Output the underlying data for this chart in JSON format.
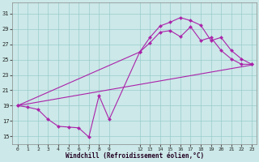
{
  "bg_color": "#cce8e8",
  "grid_color": "#99cccc",
  "line_color": "#aa22aa",
  "xlabel": "Windchill (Refroidissement éolien,°C)",
  "xlim": [
    -0.5,
    23.5
  ],
  "ylim": [
    14.0,
    32.5
  ],
  "yticks": [
    15,
    17,
    19,
    21,
    23,
    25,
    27,
    29,
    31
  ],
  "xticks": [
    0,
    1,
    2,
    3,
    4,
    5,
    6,
    7,
    8,
    9,
    12,
    13,
    14,
    15,
    16,
    17,
    18,
    19,
    20,
    21,
    22,
    23
  ],
  "curve1_x": [
    0,
    1,
    2,
    3,
    4,
    5,
    6,
    7,
    8,
    9,
    12,
    13,
    14,
    15,
    16,
    17,
    18,
    19,
    20,
    21,
    22,
    23
  ],
  "curve1_y": [
    19.0,
    18.8,
    18.5,
    17.2,
    16.3,
    16.2,
    16.1,
    14.9,
    20.3,
    17.2,
    26.0,
    27.9,
    29.4,
    29.9,
    30.5,
    30.1,
    29.5,
    27.5,
    27.9,
    26.2,
    25.1,
    24.4
  ],
  "curve3_x": [
    0,
    12,
    13,
    14,
    15,
    16,
    17,
    18,
    19,
    20,
    21,
    22,
    23
  ],
  "curve3_y": [
    19.0,
    26.0,
    27.2,
    28.6,
    28.8,
    28.0,
    29.3,
    27.5,
    27.9,
    26.2,
    25.1,
    24.4,
    24.4
  ],
  "line4_x": [
    0,
    23
  ],
  "line4_y": [
    19.0,
    24.3
  ]
}
